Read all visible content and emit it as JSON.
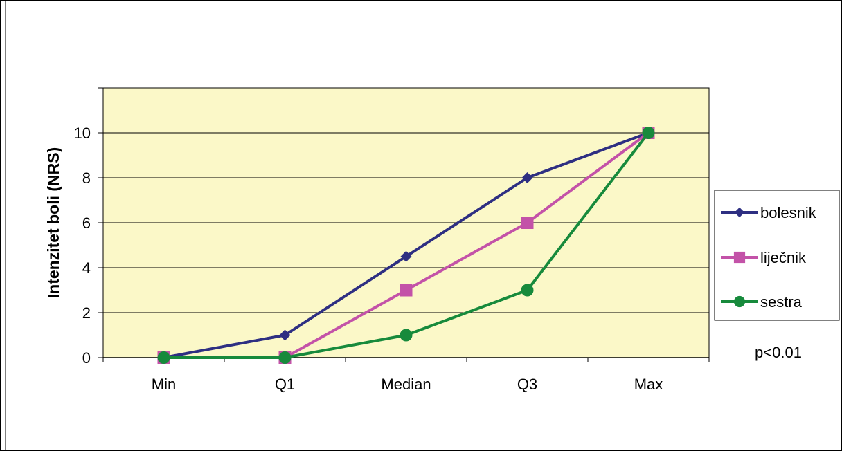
{
  "chart_data": {
    "type": "line",
    "title": "",
    "xlabel": "",
    "ylabel": "Intenzitet boli (NRS)",
    "categories": [
      "Min",
      "Q1",
      "Median",
      "Q3",
      "Max"
    ],
    "ylim": [
      0,
      12
    ],
    "yticks": [
      0,
      2,
      4,
      6,
      8,
      10
    ],
    "grid": true,
    "legend_position": "right",
    "plot_background": "#fbf8c8",
    "annotation": "p<0.01",
    "series": [
      {
        "name": "bolesnik",
        "values": [
          0,
          1,
          4.5,
          8,
          10
        ],
        "color": "#2e2f82",
        "marker": "diamond"
      },
      {
        "name": "liječnik",
        "values": [
          0,
          0,
          3,
          6,
          10
        ],
        "color": "#c352a8",
        "marker": "square"
      },
      {
        "name": "sestra",
        "values": [
          0,
          0,
          1,
          3,
          10
        ],
        "color": "#178a3c",
        "marker": "circle"
      }
    ]
  }
}
